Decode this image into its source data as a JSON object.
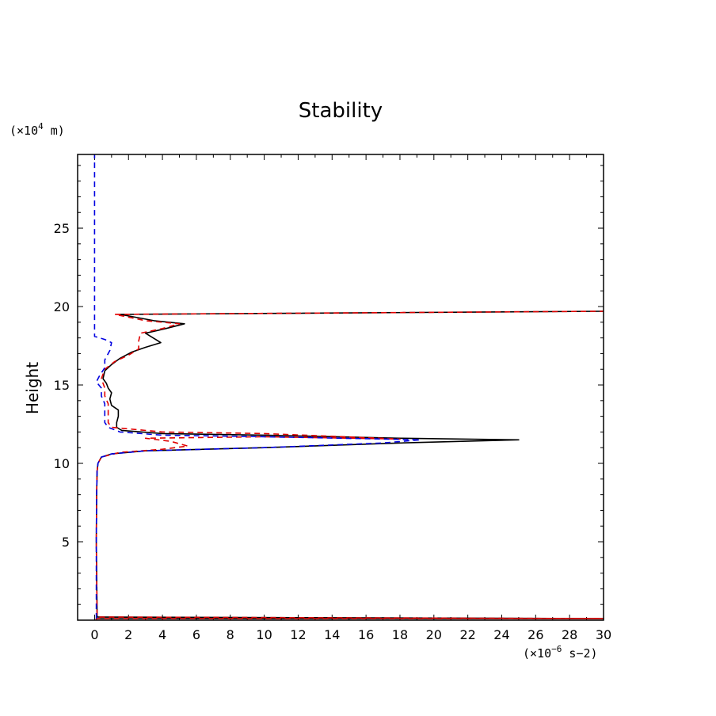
{
  "chart_data": {
    "type": "line",
    "title": "Stability",
    "ylabel": "Height",
    "xlabel": "",
    "x_unit_prefix": "(×10",
    "x_unit_exp": "−6",
    "x_unit_suffix": " s−2)",
    "y_unit_prefix": "(×10",
    "y_unit_exp": "4",
    "y_unit_suffix": " m)",
    "xlim": [
      -1,
      30
    ],
    "ylim": [
      0,
      29.7
    ],
    "xticks": [
      0,
      2,
      4,
      6,
      8,
      10,
      12,
      14,
      16,
      18,
      20,
      22,
      24,
      26,
      28,
      30
    ],
    "xtick_labels": [
      "0",
      "2",
      "4",
      "6",
      "8",
      "10",
      "12",
      "14",
      "16",
      "18",
      "20",
      "22",
      "24",
      "26",
      "28",
      "30"
    ],
    "yticks": [
      5,
      10,
      15,
      20,
      25
    ],
    "ytick_labels": [
      "5",
      "10",
      "15",
      "20",
      "25"
    ],
    "series": [
      {
        "name": "black-solid",
        "color": "#000000",
        "dash": "",
        "points": [
          [
            0.1,
            0.0
          ],
          [
            0.1,
            0.1
          ],
          [
            30,
            0.1
          ],
          [
            0.15,
            0.2
          ],
          [
            0.1,
            5
          ],
          [
            0.12,
            8
          ],
          [
            0.15,
            9.5
          ],
          [
            0.2,
            10
          ],
          [
            0.4,
            10.4
          ],
          [
            1,
            10.6
          ],
          [
            3,
            10.8
          ],
          [
            10,
            11.0
          ],
          [
            18,
            11.3
          ],
          [
            25,
            11.5
          ],
          [
            18,
            11.6
          ],
          [
            10,
            11.8
          ],
          [
            4,
            11.9
          ],
          [
            1.6,
            12.1
          ],
          [
            1.3,
            12.3
          ],
          [
            1.3,
            12.6
          ],
          [
            1.4,
            13.0
          ],
          [
            1.4,
            13.4
          ],
          [
            1.0,
            13.7
          ],
          [
            0.9,
            14.1
          ],
          [
            1.0,
            14.5
          ],
          [
            0.8,
            14.8
          ],
          [
            0.7,
            15.1
          ],
          [
            0.5,
            15.4
          ],
          [
            0.6,
            15.9
          ],
          [
            1.0,
            16.3
          ],
          [
            1.5,
            16.7
          ],
          [
            2.2,
            17.1
          ],
          [
            3.0,
            17.4
          ],
          [
            3.9,
            17.7
          ],
          [
            3.0,
            18.3
          ],
          [
            4.2,
            18.6
          ],
          [
            5.3,
            18.9
          ],
          [
            3.5,
            19.1
          ],
          [
            1.5,
            19.5
          ],
          [
            30,
            19.7
          ]
        ]
      },
      {
        "name": "red-dashed",
        "color": "#e00000",
        "dash": "7,5",
        "points": [
          [
            0.1,
            0.0
          ],
          [
            0.1,
            0.1
          ],
          [
            30,
            0.1
          ],
          [
            0.15,
            0.2
          ],
          [
            0.1,
            5
          ],
          [
            0.12,
            8
          ],
          [
            0.15,
            9.5
          ],
          [
            0.2,
            10
          ],
          [
            0.4,
            10.4
          ],
          [
            1.5,
            10.7
          ],
          [
            4,
            10.9
          ],
          [
            5.5,
            11.1
          ],
          [
            4.5,
            11.4
          ],
          [
            3,
            11.6
          ],
          [
            10,
            11.7
          ],
          [
            18,
            11.55
          ],
          [
            10,
            11.9
          ],
          [
            4,
            12.0
          ],
          [
            1.0,
            12.3
          ],
          [
            0.8,
            12.6
          ],
          [
            0.8,
            13.2
          ],
          [
            0.8,
            13.8
          ],
          [
            0.6,
            14.3
          ],
          [
            0.6,
            14.8
          ],
          [
            0.4,
            15.4
          ],
          [
            0.6,
            16.0
          ],
          [
            1.2,
            16.5
          ],
          [
            2.0,
            16.9
          ],
          [
            2.6,
            17.3
          ],
          [
            2.6,
            17.8
          ],
          [
            2.7,
            18.3
          ],
          [
            4.0,
            18.6
          ],
          [
            5.0,
            18.9
          ],
          [
            3.0,
            19.1
          ],
          [
            1.2,
            19.5
          ],
          [
            30,
            19.7
          ]
        ]
      },
      {
        "name": "blue-dashed",
        "color": "#0000e0",
        "dash": "7,5",
        "points": [
          [
            0.1,
            0.1
          ],
          [
            0.1,
            5
          ],
          [
            0.12,
            8
          ],
          [
            0.15,
            9.5
          ],
          [
            0.2,
            10
          ],
          [
            0.4,
            10.4
          ],
          [
            1,
            10.6
          ],
          [
            3,
            10.8
          ],
          [
            10,
            11.0
          ],
          [
            17,
            11.3
          ],
          [
            19.2,
            11.5
          ],
          [
            17,
            11.55
          ],
          [
            10,
            11.7
          ],
          [
            4,
            11.8
          ],
          [
            1.5,
            12.0
          ],
          [
            0.8,
            12.3
          ],
          [
            0.6,
            12.6
          ],
          [
            0.6,
            13.2
          ],
          [
            0.6,
            13.8
          ],
          [
            0.4,
            14.3
          ],
          [
            0.4,
            14.8
          ],
          [
            0.1,
            15.2
          ],
          [
            0.3,
            15.6
          ],
          [
            0.6,
            16.1
          ],
          [
            0.6,
            16.6
          ],
          [
            0.9,
            17.2
          ],
          [
            1.0,
            17.7
          ],
          [
            0.6,
            17.9
          ],
          [
            0.0,
            18.1
          ],
          [
            0.0,
            29.7
          ]
        ]
      }
    ]
  }
}
